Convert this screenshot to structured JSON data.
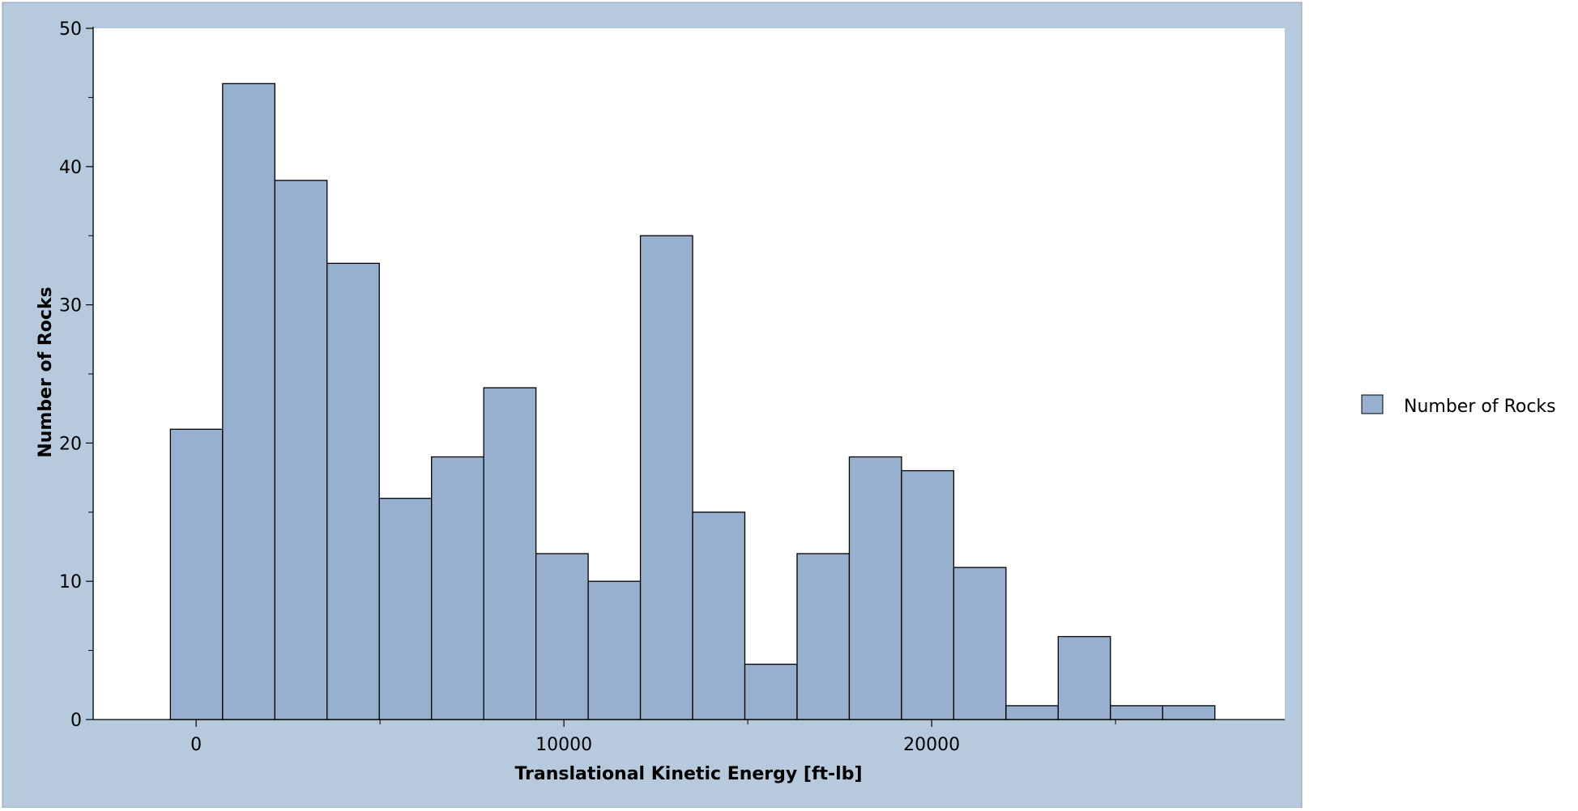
{
  "chart_data": {
    "type": "bar",
    "title": "",
    "xlabel": "Translational Kinetic Energy [ft-lb]",
    "ylabel": "Number of Rocks",
    "xlim": [
      -2800,
      29600
    ],
    "ylim": [
      0,
      50
    ],
    "bin_width": 1420,
    "x_ticks": [
      0,
      10000,
      20000
    ],
    "x_tick_labels": [
      "0",
      "10000",
      "20000"
    ],
    "y_ticks": [
      0,
      10,
      20,
      30,
      40,
      50
    ],
    "y_tick_labels": [
      "0",
      "10",
      "20",
      "30",
      "40",
      "50"
    ],
    "grid": false,
    "legend_position": "right",
    "series": [
      {
        "name": "Number of Rocks",
        "color": "#98b0cf",
        "bins": [
          {
            "x0": -700,
            "x1": 720,
            "value": 21
          },
          {
            "x0": 720,
            "x1": 2140,
            "value": 46
          },
          {
            "x0": 2140,
            "x1": 3560,
            "value": 39
          },
          {
            "x0": 3560,
            "x1": 4980,
            "value": 33
          },
          {
            "x0": 4980,
            "x1": 6400,
            "value": 16
          },
          {
            "x0": 6400,
            "x1": 7820,
            "value": 19
          },
          {
            "x0": 7820,
            "x1": 9240,
            "value": 24
          },
          {
            "x0": 9240,
            "x1": 10660,
            "value": 12
          },
          {
            "x0": 10660,
            "x1": 12080,
            "value": 10
          },
          {
            "x0": 12080,
            "x1": 13500,
            "value": 35
          },
          {
            "x0": 13500,
            "x1": 14920,
            "value": 15
          },
          {
            "x0": 14920,
            "x1": 16340,
            "value": 4
          },
          {
            "x0": 16340,
            "x1": 17760,
            "value": 12
          },
          {
            "x0": 17760,
            "x1": 19180,
            "value": 19
          },
          {
            "x0": 19180,
            "x1": 20600,
            "value": 18
          },
          {
            "x0": 20600,
            "x1": 22020,
            "value": 11
          },
          {
            "x0": 22020,
            "x1": 23440,
            "value": 1
          },
          {
            "x0": 23440,
            "x1": 24860,
            "value": 6
          },
          {
            "x0": 24860,
            "x1": 26280,
            "value": 1
          },
          {
            "x0": 26280,
            "x1": 27700,
            "value": 1
          }
        ]
      }
    ]
  },
  "colors": {
    "frame_background": "#b7c9dd",
    "plot_background": "#ffffff",
    "bar_fill": "#98b0cf",
    "bar_stroke": "#000000"
  }
}
